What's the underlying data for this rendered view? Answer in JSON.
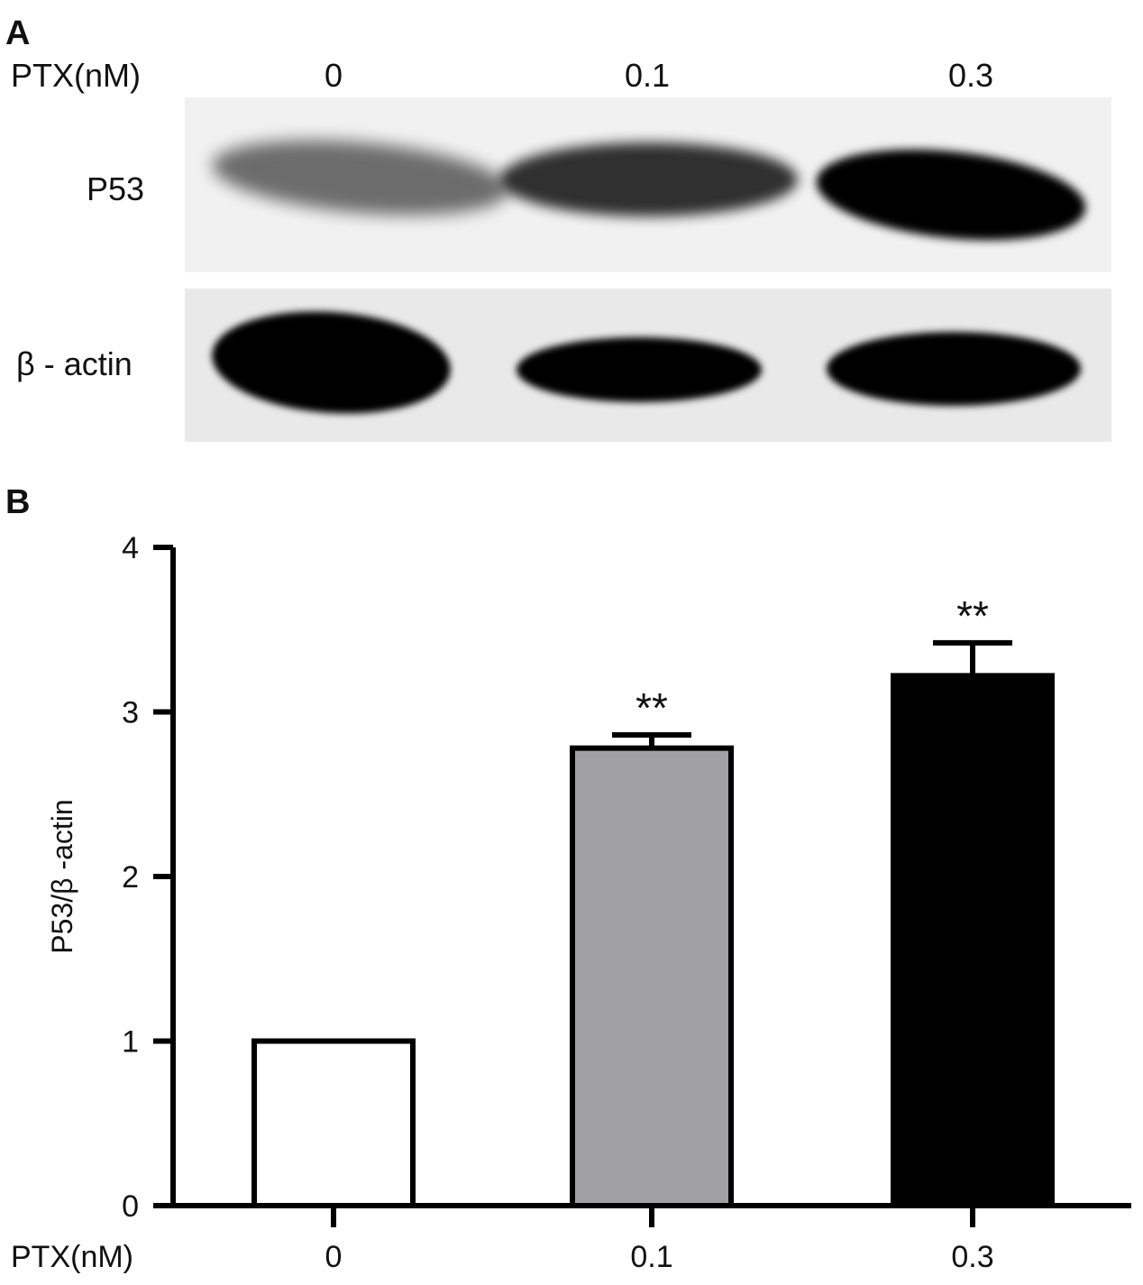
{
  "panel_a": {
    "letter": "A",
    "x_label": "PTX(nM)",
    "lanes": [
      "0",
      "0.1",
      "0.3"
    ],
    "blots": [
      {
        "name": "P53",
        "label": "P53",
        "band_intensity": [
          0.55,
          0.8,
          1.0
        ]
      },
      {
        "name": "beta-actin",
        "label": "β - actin",
        "band_intensity": [
          1.0,
          1.0,
          1.0
        ]
      }
    ]
  },
  "panel_b": {
    "letter": "B",
    "x_label": "PTX(nM)"
  },
  "colors": {
    "bar_0": "#ffffff",
    "bar_01": "#a0a0a5",
    "bar_03": "#000000",
    "axis": "#000000"
  },
  "chart_data": {
    "type": "bar",
    "categories": [
      "0",
      "0.1",
      "0.3"
    ],
    "values": [
      1.0,
      2.78,
      3.22
    ],
    "error": [
      0,
      0.08,
      0.2
    ],
    "significance": [
      "",
      "**",
      "**"
    ],
    "xlabel": "PTX(nM)",
    "ylabel": "P53/β -actin",
    "ylim": [
      0,
      4
    ],
    "yticks": [
      0,
      1,
      2,
      3,
      4
    ],
    "grid": false
  }
}
